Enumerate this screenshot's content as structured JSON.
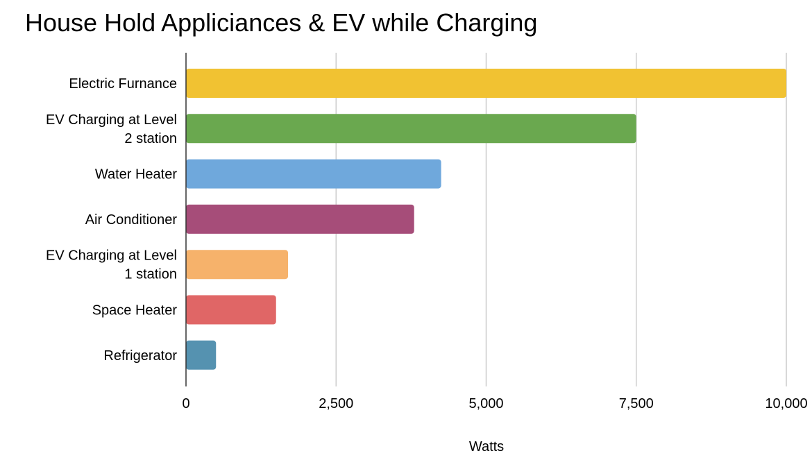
{
  "chart_data": {
    "type": "bar",
    "orientation": "horizontal",
    "title": "House Hold Appliciances & EV while Charging",
    "xlabel": "Watts",
    "ylabel": "",
    "xlim": [
      0,
      10000
    ],
    "ticks": [
      {
        "value": 0,
        "label": "0"
      },
      {
        "value": 2500,
        "label": "2,500"
      },
      {
        "value": 5000,
        "label": "5,000"
      },
      {
        "value": 7500,
        "label": "7,500"
      },
      {
        "value": 10000,
        "label": "10,000"
      }
    ],
    "grid": true,
    "legend": "none",
    "bars": [
      {
        "label_lines": [
          "Electric Furnance"
        ],
        "value": 10000,
        "color": "#F1C232"
      },
      {
        "label_lines": [
          "EV Charging at Level",
          "2 station"
        ],
        "value": 7500,
        "color": "#6AA84F"
      },
      {
        "label_lines": [
          "Water Heater"
        ],
        "value": 4250,
        "color": "#6FA8DC"
      },
      {
        "label_lines": [
          "Air Conditioner"
        ],
        "value": 3800,
        "color": "#A64D79"
      },
      {
        "label_lines": [
          "EV Charging at Level",
          "1 station"
        ],
        "value": 1700,
        "color": "#F6B26B"
      },
      {
        "label_lines": [
          "Space Heater"
        ],
        "value": 1500,
        "color": "#E06666"
      },
      {
        "label_lines": [
          "Refrigerator"
        ],
        "value": 500,
        "color": "#5592B0"
      }
    ]
  }
}
